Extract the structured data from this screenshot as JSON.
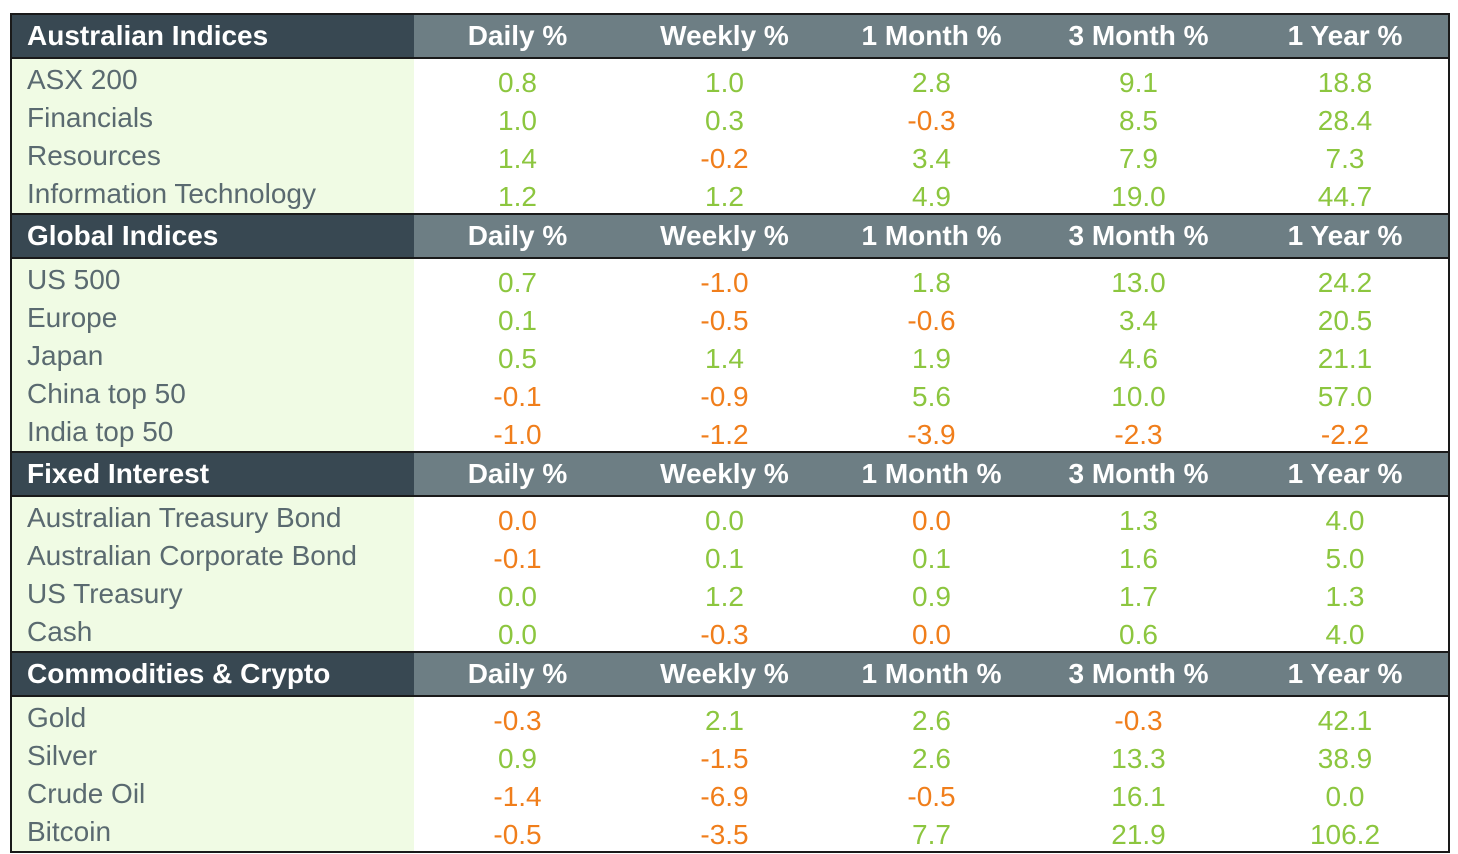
{
  "colors": {
    "positive": "#8cc63f",
    "negative": "#f07e1b",
    "header_dark": "#384852",
    "header_gray": "#6d7e84",
    "name_bg": "#f0fbe4"
  },
  "sections": [
    {
      "title": "Australian Indices",
      "columns": [
        "Daily %",
        "Weekly %",
        "1 Month %",
        "3 Month %",
        "1 Year %"
      ],
      "rows": [
        {
          "name": "ASX 200",
          "values": [
            "0.8",
            "1.0",
            "2.8",
            "9.1",
            "18.8"
          ]
        },
        {
          "name": "Financials",
          "values": [
            "1.0",
            "0.3",
            "-0.3",
            "8.5",
            "28.4"
          ]
        },
        {
          "name": "Resources",
          "values": [
            "1.4",
            "-0.2",
            "3.4",
            "7.9",
            "7.3"
          ]
        },
        {
          "name": "Information Technology",
          "values": [
            "1.2",
            "1.2",
            "4.9",
            "19.0",
            "44.7"
          ]
        }
      ]
    },
    {
      "title": "Global Indices",
      "columns": [
        "Daily %",
        "Weekly %",
        "1 Month %",
        "3 Month %",
        "1 Year %"
      ],
      "rows": [
        {
          "name": "US 500",
          "values": [
            "0.7",
            "-1.0",
            "1.8",
            "13.0",
            "24.2"
          ]
        },
        {
          "name": "Europe",
          "values": [
            "0.1",
            "-0.5",
            "-0.6",
            "3.4",
            "20.5"
          ]
        },
        {
          "name": "Japan",
          "values": [
            "0.5",
            "1.4",
            "1.9",
            "4.6",
            "21.1"
          ]
        },
        {
          "name": "China top 50",
          "values": [
            "-0.1",
            "-0.9",
            "5.6",
            "10.0",
            "57.0"
          ]
        },
        {
          "name": "India top 50",
          "values": [
            "-1.0",
            "-1.2",
            "-3.9",
            "-2.3",
            "-2.2"
          ]
        }
      ]
    },
    {
      "title": "Fixed Interest",
      "columns": [
        "Daily %",
        "Weekly %",
        "1 Month %",
        "3 Month %",
        "1 Year %"
      ],
      "rows": [
        {
          "name": "Australian Treasury Bond",
          "values": [
            "0.0",
            "0.0",
            "0.0",
            "1.3",
            "4.0"
          ],
          "negative_zero": [
            true,
            false,
            true,
            false,
            false
          ]
        },
        {
          "name": "Australian Corporate Bond",
          "values": [
            "-0.1",
            "0.1",
            "0.1",
            "1.6",
            "5.0"
          ]
        },
        {
          "name": "US Treasury",
          "values": [
            "0.0",
            "1.2",
            "0.9",
            "1.7",
            "1.3"
          ]
        },
        {
          "name": "Cash",
          "values": [
            "0.0",
            "-0.3",
            "0.0",
            "0.6",
            "4.0"
          ],
          "negative_zero": [
            false,
            false,
            true,
            false,
            false
          ]
        }
      ]
    },
    {
      "title": "Commodities & Crypto",
      "columns": [
        "Daily %",
        "Weekly %",
        "1 Month %",
        "3 Month %",
        "1 Year %"
      ],
      "rows": [
        {
          "name": "Gold",
          "values": [
            "-0.3",
            "2.1",
            "2.6",
            "-0.3",
            "42.1"
          ]
        },
        {
          "name": "Silver",
          "values": [
            "0.9",
            "-1.5",
            "2.6",
            "13.3",
            "38.9"
          ]
        },
        {
          "name": "Crude Oil",
          "values": [
            "-1.4",
            "-6.9",
            "-0.5",
            "16.1",
            "0.0"
          ]
        },
        {
          "name": "Bitcoin",
          "values": [
            "-0.5",
            "-3.5",
            "7.7",
            "21.9",
            "106.2"
          ]
        }
      ]
    }
  ]
}
